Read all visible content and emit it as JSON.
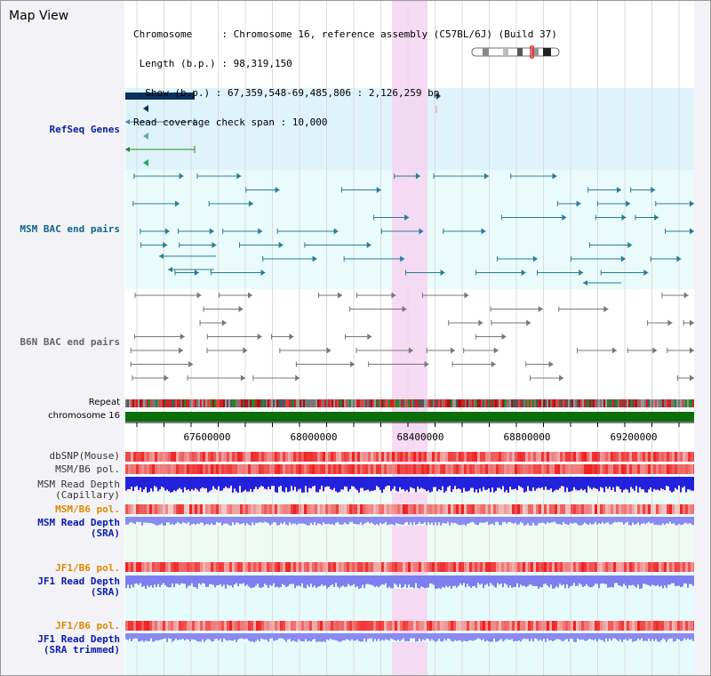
{
  "header": {
    "title": "Map View",
    "info_lines": [
      "Chromosome     : Chromosome 16, reference assembly (C57BL/6J) (Build 37)",
      " Length (b.p.) : 98,319,150",
      "  Show (b.p.) : 67,359,548-69,485,806 : 2,126,259 bp",
      "Read coverage check span : 10,000"
    ]
  },
  "tracks": {
    "refseq": "RefSeq Genes",
    "msm_bac": "MSM BAC end pairs",
    "b6n_bac": "B6N BAC end pairs",
    "repeat": "Repeat",
    "chromosome": "chromosome 16",
    "dbsnp": "dbSNP(Mouse)",
    "msm_b6_pol": "MSM/B6 pol.",
    "msm_depth_cap": "MSM Read Depth\n(Capillary)",
    "msm_b6_pol2": "MSM/B6 pol.",
    "msm_depth_sra": "MSM Read Depth\n(SRA)",
    "jf1_b6_pol": "JF1/B6 pol.",
    "jf1_depth_sra": "JF1 Read Depth\n(SRA)",
    "jf1_b6_pol2": "JF1/B6 pol.",
    "jf1_depth_trim": "JF1 Read Depth\n(SRA trimmed)"
  },
  "axis": {
    "ticks": [
      "67600000",
      "68000000",
      "68400000",
      "68800000",
      "69200000"
    ]
  },
  "colors": {
    "refseq_bg": "#dff3fb",
    "highlight": "#f6d4f1",
    "chromosome": "#0b6e0b",
    "msm_cap": "#2222dd",
    "sra": "#8a8af0"
  },
  "icons": {
    "ideogram": "chromosome-ideogram-icon"
  }
}
